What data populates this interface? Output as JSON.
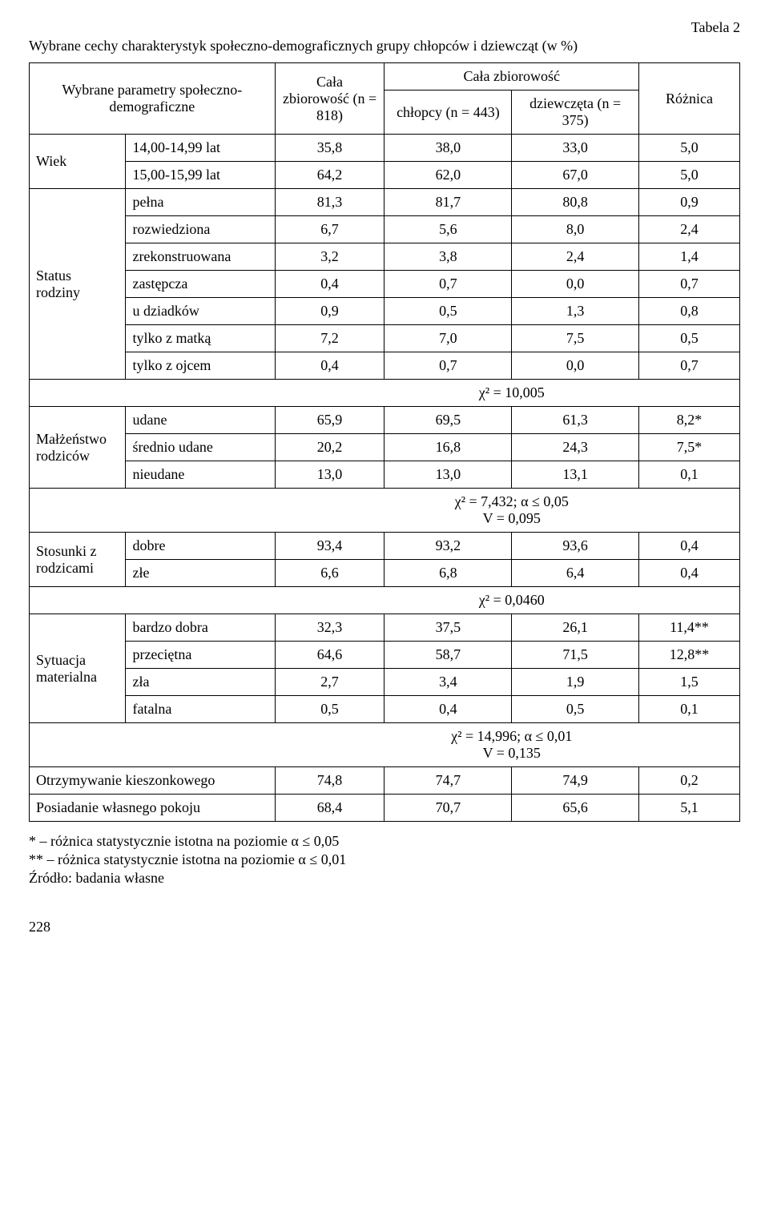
{
  "table_label": "Tabela 2",
  "title": "Wybrane cechy charakterystyk społeczno-demograficznych grupy chłopców i dziewcząt (w %)",
  "header": {
    "param": "Wybrane parametry społeczno-demograficzne",
    "all_n": "Cała zbiorowość (n = 818)",
    "all_group": "Cała zbiorowość",
    "boys": "chłopcy (n = 443)",
    "girls": "dziewczęta (n = 375)",
    "diff": "Różnica"
  },
  "groups": {
    "wiek": {
      "label": "Wiek",
      "rows": [
        {
          "c": "14,00-14,99 lat",
          "v": [
            "35,8",
            "38,0",
            "33,0",
            "5,0"
          ]
        },
        {
          "c": "15,00-15,99 lat",
          "v": [
            "64,2",
            "62,0",
            "67,0",
            "5,0"
          ]
        }
      ]
    },
    "status": {
      "label": "Status rodziny",
      "rows": [
        {
          "c": "pełna",
          "v": [
            "81,3",
            "81,7",
            "80,8",
            "0,9"
          ]
        },
        {
          "c": "rozwiedziona",
          "v": [
            "6,7",
            "5,6",
            "8,0",
            "2,4"
          ]
        },
        {
          "c": "zrekonstruowana",
          "v": [
            "3,2",
            "3,8",
            "2,4",
            "1,4"
          ]
        },
        {
          "c": "zastępcza",
          "v": [
            "0,4",
            "0,7",
            "0,0",
            "0,7"
          ]
        },
        {
          "c": "u dziadków",
          "v": [
            "0,9",
            "0,5",
            "1,3",
            "0,8"
          ]
        },
        {
          "c": "tylko z matką",
          "v": [
            "7,2",
            "7,0",
            "7,5",
            "0,5"
          ]
        },
        {
          "c": "tylko z ojcem",
          "v": [
            "0,4",
            "0,7",
            "0,0",
            "0,7"
          ]
        }
      ],
      "stat": "χ² = 10,005"
    },
    "malzenstwo": {
      "label": "Małżeństwo rodziców",
      "rows": [
        {
          "c": "udane",
          "v": [
            "65,9",
            "69,5",
            "61,3",
            "8,2*"
          ]
        },
        {
          "c": "średnio udane",
          "v": [
            "20,2",
            "16,8",
            "24,3",
            "7,5*"
          ]
        },
        {
          "c": "nieudane",
          "v": [
            "13,0",
            "13,0",
            "13,1",
            "0,1"
          ]
        }
      ],
      "stat1": "χ² = 7,432;  α ≤ 0,05",
      "stat2": "V = 0,095"
    },
    "stosunki": {
      "label": "Stosunki z rodzicami",
      "rows": [
        {
          "c": "dobre",
          "v": [
            "93,4",
            "93,2",
            "93,6",
            "0,4"
          ]
        },
        {
          "c": "złe",
          "v": [
            "6,6",
            "6,8",
            "6,4",
            "0,4"
          ]
        }
      ],
      "stat": "χ² = 0,0460"
    },
    "sytuacja": {
      "label": "Sytuacja materialna",
      "rows": [
        {
          "c": "bardzo dobra",
          "v": [
            "32,3",
            "37,5",
            "26,1",
            "11,4**"
          ]
        },
        {
          "c": "przeciętna",
          "v": [
            "64,6",
            "58,7",
            "71,5",
            "12,8**"
          ]
        },
        {
          "c": "zła",
          "v": [
            "2,7",
            "3,4",
            "1,9",
            "1,5"
          ]
        },
        {
          "c": "fatalna",
          "v": [
            "0,5",
            "0,4",
            "0,5",
            "0,1"
          ]
        }
      ],
      "stat1": "χ² = 14,996;  α ≤ 0,01",
      "stat2": "V = 0,135"
    },
    "kieszonkowe": {
      "c": "Otrzymywanie kieszonkowego",
      "v": [
        "74,8",
        "74,7",
        "74,9",
        "0,2"
      ]
    },
    "pokoj": {
      "c": "Posiadanie własnego pokoju",
      "v": [
        "68,4",
        "70,7",
        "65,6",
        "5,1"
      ]
    }
  },
  "footnotes": {
    "f1": "  * – różnica statystycznie istotna na poziomie α ≤ 0,05",
    "f2": "** – różnica statystycznie istotna na poziomie α ≤ 0,01",
    "src": "Źródło: badania własne"
  },
  "page": "228"
}
